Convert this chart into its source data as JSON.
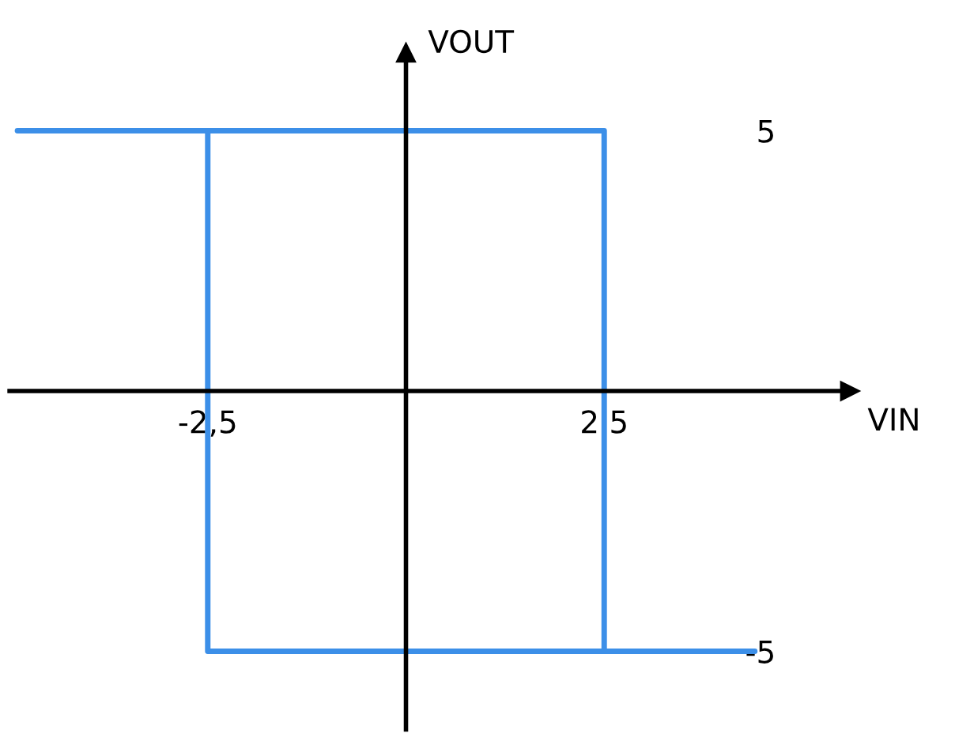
{
  "chart_data": {
    "type": "line",
    "xlabel": "VIN",
    "ylabel": "VOUT",
    "x": [
      -4.9,
      2.5,
      2.5,
      4.4,
      -2.5,
      -2.5
    ],
    "series": [
      {
        "color": "#3c8fe8",
        "values": [
          5,
          5,
          -5,
          -5,
          -5,
          5
        ]
      }
    ],
    "xlim": [
      -5,
      5.6
    ],
    "ylim": [
      -6.5,
      6.5
    ],
    "xticks": [
      {
        "value": -2.5,
        "label": "-2,5"
      },
      {
        "value": 2.5,
        "label": "2,5"
      }
    ],
    "yticks": [
      5,
      -5
    ],
    "grid": false,
    "marker": "none",
    "line_style": "solid"
  }
}
